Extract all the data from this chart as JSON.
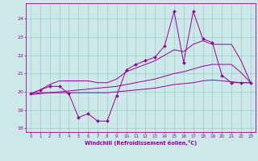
{
  "x_data": [
    0,
    1,
    2,
    3,
    4,
    5,
    6,
    7,
    8,
    9,
    10,
    11,
    12,
    13,
    14,
    15,
    16,
    17,
    18,
    19,
    20,
    21,
    22,
    23
  ],
  "y_main": [
    19.9,
    20.1,
    20.3,
    20.3,
    19.9,
    18.6,
    18.8,
    18.4,
    18.4,
    19.8,
    21.2,
    21.5,
    21.7,
    21.9,
    22.5,
    24.4,
    21.6,
    24.4,
    22.9,
    22.7,
    20.9,
    20.5,
    20.5,
    20.5
  ],
  "y_upper": [
    19.9,
    20.1,
    20.4,
    20.6,
    20.6,
    20.6,
    20.6,
    20.5,
    20.5,
    20.7,
    21.1,
    21.3,
    21.5,
    21.7,
    22.0,
    22.3,
    22.2,
    22.6,
    22.8,
    22.6,
    22.6,
    22.6,
    21.7,
    20.5
  ],
  "y_lower": [
    19.9,
    19.95,
    19.95,
    19.95,
    19.95,
    19.95,
    19.95,
    19.95,
    19.95,
    20.0,
    20.05,
    20.1,
    20.15,
    20.2,
    20.3,
    20.4,
    20.45,
    20.5,
    20.6,
    20.65,
    20.6,
    20.55,
    20.5,
    20.5
  ],
  "y_trend": [
    19.85,
    19.9,
    19.95,
    20.0,
    20.05,
    20.1,
    20.15,
    20.2,
    20.25,
    20.3,
    20.4,
    20.5,
    20.6,
    20.7,
    20.85,
    21.0,
    21.1,
    21.25,
    21.4,
    21.5,
    21.5,
    21.5,
    21.05,
    20.5
  ],
  "line_color": "#990099",
  "bg_color": "#cce8e8",
  "grid_color": "#99cccc",
  "xlabel": "Windchill (Refroidissement éolien,°C)",
  "xlim": [
    -0.5,
    23.5
  ],
  "ylim": [
    17.8,
    24.85
  ],
  "yticks": [
    18,
    19,
    20,
    21,
    22,
    23,
    24
  ],
  "xticks": [
    0,
    1,
    2,
    3,
    4,
    5,
    6,
    7,
    8,
    9,
    10,
    11,
    12,
    13,
    14,
    15,
    16,
    17,
    18,
    19,
    20,
    21,
    22,
    23
  ]
}
